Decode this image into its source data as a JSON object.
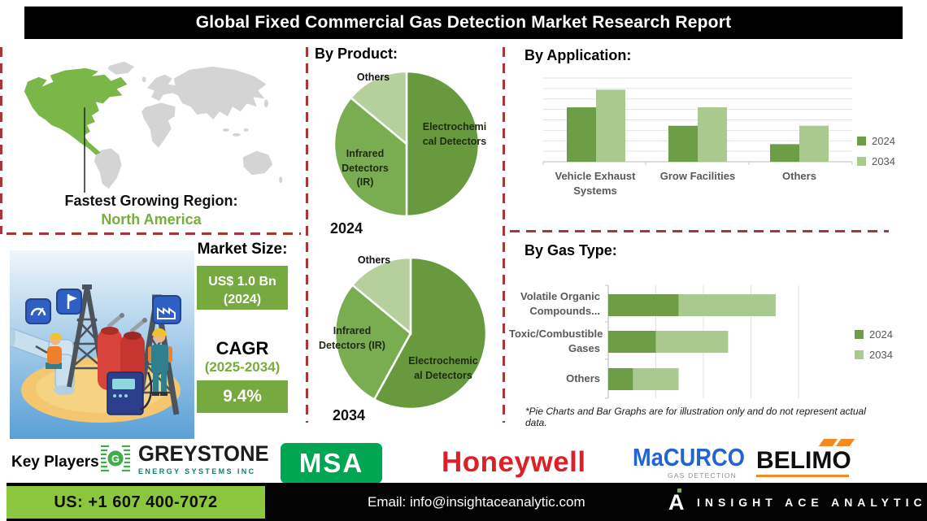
{
  "title": "Global Fixed Commercial Gas Detection Market Research Report",
  "region": {
    "heading": "Fastest Growing Region:",
    "value": "North America"
  },
  "market": {
    "size_label": "Market Size:",
    "size_value": "US$ 1.0 Bn",
    "size_year": "(2024)",
    "cagr_label": "CAGR",
    "cagr_period": "(2025-2034)",
    "cagr_value": "9.4%"
  },
  "footnote": "*Pie Charts and Bar Graphs are for illustration only and do not represent actual data.",
  "chart_data": [
    {
      "type": "pie",
      "group_title": "By Product:",
      "year_label": "2024",
      "slices": [
        {
          "label": "Electrochemical Detectors",
          "value": 50
        },
        {
          "label": "Infrared Detectors (IR)",
          "value": 36
        },
        {
          "label": "Others",
          "value": 14
        }
      ],
      "colors": [
        "#68993f",
        "#7aad52",
        "#b5d09d"
      ]
    },
    {
      "type": "pie",
      "year_label": "2034",
      "slices": [
        {
          "label": "Electrochemical Detectors",
          "value": 58
        },
        {
          "label": "Infrared Detectors (IR)",
          "value": 28
        },
        {
          "label": "Others",
          "value": 14
        }
      ],
      "colors": [
        "#68993f",
        "#7aad52",
        "#b5d09d"
      ]
    },
    {
      "type": "bar",
      "title": "By Application:",
      "categories": [
        "Vehicle Exhaust Systems",
        "Grow Facilities",
        "Others"
      ],
      "series": [
        {
          "name": "2024",
          "color": "#6d9e47",
          "values": [
            6.5,
            4.3,
            2.1
          ]
        },
        {
          "name": "2034",
          "color": "#a9c98f",
          "values": [
            8.6,
            6.5,
            4.3
          ]
        }
      ],
      "ylim": [
        0,
        10
      ],
      "gridlines": true,
      "legend_position": "right"
    },
    {
      "type": "stacked_hbar",
      "title": "By Gas Type:",
      "categories": [
        "Volatile Organic Compounds...",
        "Toxic/Combustible Gases",
        "Others"
      ],
      "series": [
        {
          "name": "2024",
          "color": "#6d9e47",
          "values": [
            3.7,
            2.5,
            1.3
          ]
        },
        {
          "name": "2034",
          "color": "#a9c98f",
          "values": [
            5.1,
            3.8,
            2.4
          ]
        }
      ],
      "xlim": [
        0,
        10
      ],
      "gridlines": true,
      "legend_position": "right"
    }
  ],
  "key_players": {
    "label": "Key Players:",
    "greystone_name": "GREYSTONE",
    "greystone_sub": "ENERGY SYSTEMS INC",
    "greystone_icon_letter": "G",
    "msa": "MSA",
    "honeywell": "Honeywell",
    "macurco": "MaCURCO",
    "macurco_sub": "GAS DETECTION",
    "belimo": "BELIMO"
  },
  "footer": {
    "phone": "US: +1 607 400-7072",
    "email": "Email: info@insightaceanalytic.com",
    "brand": "INSIGHT ACE ANALYTIC",
    "logo_letter": "A"
  },
  "colors": {
    "dashed_red": "#a93439",
    "accent_green": "#76a940",
    "footer_green": "#8cc63f",
    "map_highlight": "#7ab648",
    "pie_dark": "#68993f",
    "pie_mid": "#7aad52",
    "pie_light": "#b5d09d",
    "bar_2024": "#6d9e47",
    "bar_2034": "#a9c98f",
    "msa_green": "#00a651",
    "honeywell_red": "#dd1f26",
    "macurco_blue": "#2364d2",
    "belimo_orange": "#f6891f"
  }
}
